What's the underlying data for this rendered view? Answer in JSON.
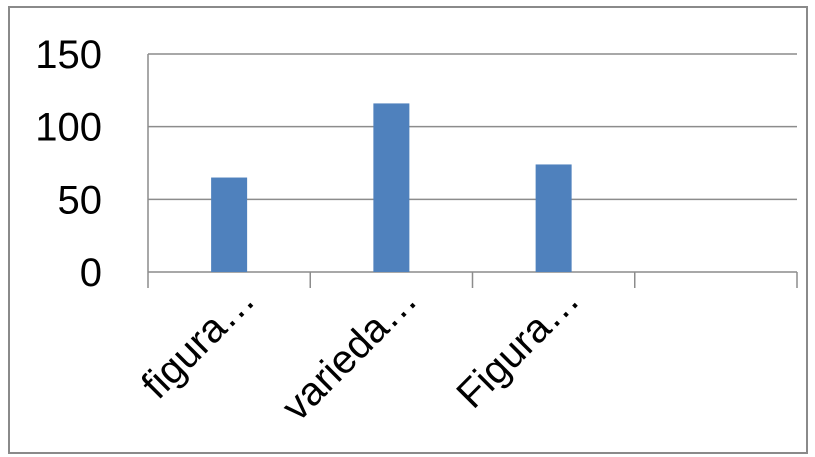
{
  "chart_data": {
    "type": "bar",
    "categories": [
      "figura…",
      "varieda…",
      "Figura…",
      ""
    ],
    "series": [
      {
        "values": [
          65,
          116,
          74,
          null
        ]
      }
    ],
    "ylim": [
      0,
      150
    ],
    "yticks": [
      0,
      50,
      100,
      150
    ],
    "grid": true,
    "legend": "none",
    "bar_color": "#4F81BD",
    "grid_color": "#8C8C8C"
  }
}
